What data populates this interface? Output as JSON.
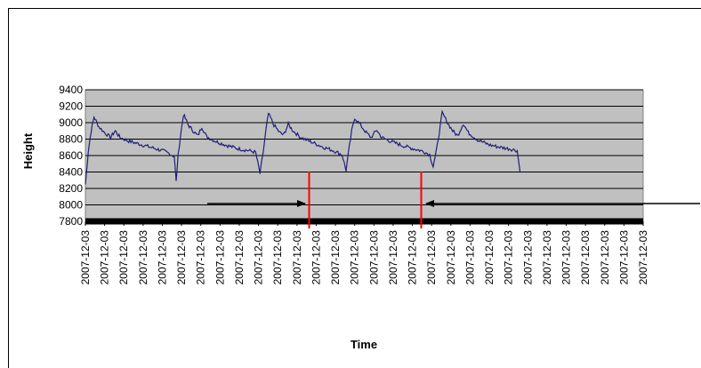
{
  "chart_data": {
    "type": "line",
    "title": "",
    "xlabel": "Time",
    "ylabel": "Height",
    "ylim": [
      7800,
      9400
    ],
    "yticks": [
      7800,
      8000,
      8200,
      8400,
      8600,
      8800,
      9000,
      9200,
      9400
    ],
    "x_tick_labels": [
      "2007-12-03",
      "2007-12-03",
      "2007-12-03",
      "2007-12-03",
      "2007-12-03",
      "2007-12-03",
      "2007-12-03",
      "2007-12-03",
      "2007-12-03",
      "2007-12-03",
      "2007-12-03",
      "2007-12-03",
      "2007-12-03",
      "2007-12-03",
      "2007-12-03",
      "2007-12-03",
      "2007-12-03",
      "2007-12-03",
      "2007-12-03",
      "2007-12-03",
      "2007-12-03",
      "2007-12-03",
      "2007-12-03",
      "2007-12-03",
      "2007-12-03",
      "2007-12-03",
      "2007-12-03",
      "2007-12-03",
      "2007-12-03",
      "2007-12-03"
    ],
    "grid": true,
    "background": "#c0c0c0",
    "series_color": "#1f1f7a",
    "series": [
      {
        "points": [
          [
            0,
            8250
          ],
          [
            0.15,
            8650
          ],
          [
            0.3,
            8900
          ],
          [
            0.45,
            9070
          ],
          [
            0.7,
            8950
          ],
          [
            1.0,
            8880
          ],
          [
            1.3,
            8820
          ],
          [
            1.55,
            8900
          ],
          [
            1.8,
            8820
          ],
          [
            2.2,
            8780
          ],
          [
            2.8,
            8740
          ],
          [
            3.4,
            8700
          ],
          [
            4.0,
            8660
          ],
          [
            4.4,
            8620
          ],
          [
            4.62,
            8590
          ],
          [
            4.72,
            8280
          ],
          [
            4.82,
            8600
          ],
          [
            4.95,
            8850
          ],
          [
            5.1,
            9100
          ],
          [
            5.35,
            8970
          ],
          [
            5.6,
            8900
          ],
          [
            5.85,
            8840
          ],
          [
            6.05,
            8950
          ],
          [
            6.3,
            8830
          ],
          [
            6.8,
            8770
          ],
          [
            7.4,
            8720
          ],
          [
            8.0,
            8680
          ],
          [
            8.5,
            8660
          ],
          [
            8.85,
            8640
          ],
          [
            9.08,
            8380
          ],
          [
            9.25,
            8650
          ],
          [
            9.38,
            8900
          ],
          [
            9.52,
            9110
          ],
          [
            9.8,
            8970
          ],
          [
            10.1,
            8880
          ],
          [
            10.3,
            8850
          ],
          [
            10.55,
            8980
          ],
          [
            10.8,
            8900
          ],
          [
            11.2,
            8820
          ],
          [
            11.8,
            8760
          ],
          [
            12.4,
            8700
          ],
          [
            12.9,
            8660
          ],
          [
            13.35,
            8610
          ],
          [
            13.55,
            8420
          ],
          [
            13.72,
            8700
          ],
          [
            13.85,
            8900
          ],
          [
            14.0,
            9060
          ],
          [
            14.3,
            8970
          ],
          [
            14.6,
            8880
          ],
          [
            14.85,
            8820
          ],
          [
            15.15,
            8910
          ],
          [
            15.4,
            8820
          ],
          [
            15.9,
            8770
          ],
          [
            16.5,
            8720
          ],
          [
            17.1,
            8680
          ],
          [
            17.6,
            8650
          ],
          [
            17.9,
            8610
          ],
          [
            18.08,
            8470
          ],
          [
            18.25,
            8660
          ],
          [
            18.4,
            8880
          ],
          [
            18.55,
            9120
          ],
          [
            18.85,
            8990
          ],
          [
            19.1,
            8900
          ],
          [
            19.35,
            8840
          ],
          [
            19.65,
            8990
          ],
          [
            19.9,
            8880
          ],
          [
            20.4,
            8790
          ],
          [
            21.0,
            8730
          ],
          [
            21.6,
            8700
          ],
          [
            22.1,
            8680
          ],
          [
            22.45,
            8660
          ],
          [
            22.6,
            8400
          ]
        ]
      }
    ]
  },
  "annotations": {
    "red_marker_color": "#ff0000",
    "arrow_color": "#000000"
  }
}
